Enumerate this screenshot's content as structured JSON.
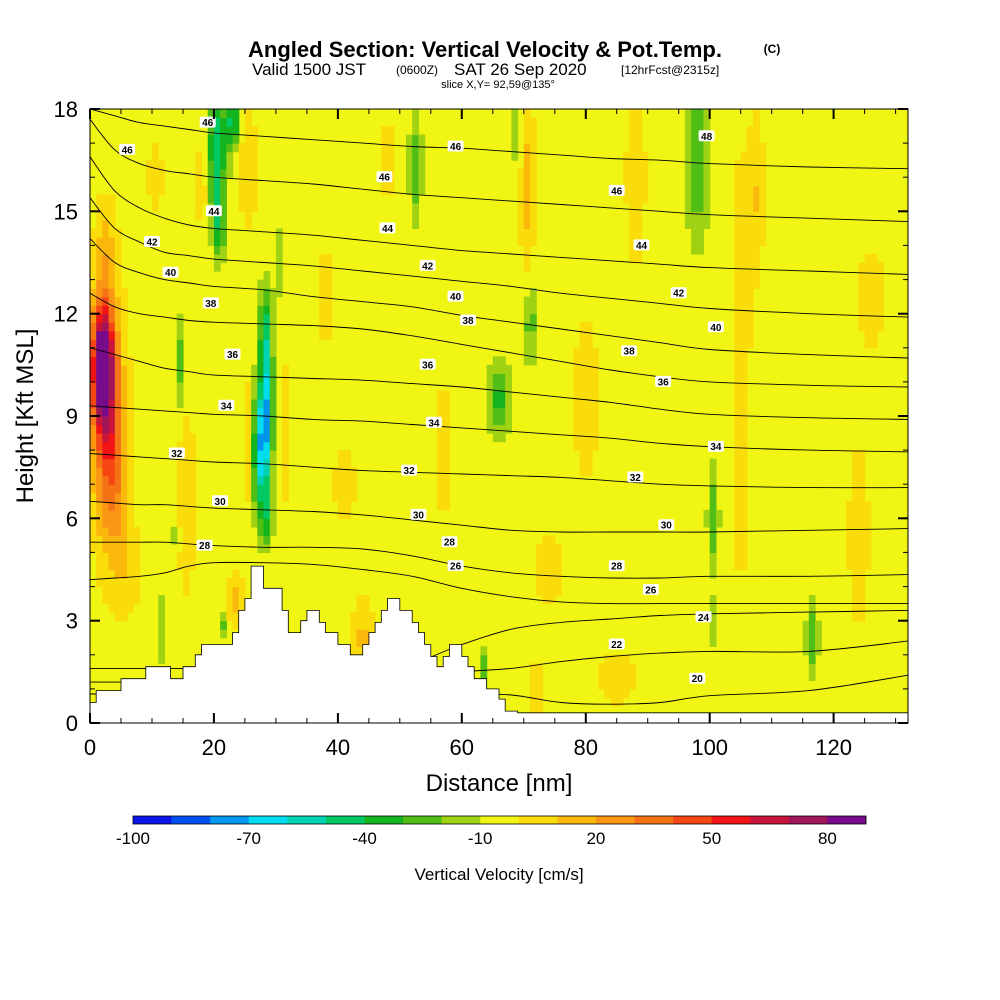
{
  "chart_data": {
    "type": "heatmap",
    "title": "Angled Section: Vertical Velocity & Pot.Temp.",
    "title_units": "(C)",
    "subtitle_parts": [
      "Valid 1500 JST",
      "(0600Z)",
      "SAT 26 Sep 2020",
      "[12hrFcst@2315z]"
    ],
    "slice_label": "slice X,Y= 92,59@135°",
    "xlabel": "Distance [nm]",
    "ylabel": "Height [Kft MSL]",
    "xlim": [
      0,
      132
    ],
    "ylim": [
      0,
      18
    ],
    "x_ticks": [
      0,
      20,
      40,
      60,
      80,
      100,
      120
    ],
    "y_ticks": [
      0,
      3,
      6,
      9,
      12,
      15,
      18
    ],
    "colorbar": {
      "label": "Vertical Velocity [cm/s]",
      "tick_values": [
        -100,
        -70,
        -40,
        -10,
        20,
        50,
        80
      ],
      "tick_labels": [
        "-100",
        "-70",
        "-40",
        "-10",
        "20",
        "50",
        "80"
      ],
      "bins_start": -100,
      "bin_width": 10,
      "colors": [
        "#0a14e6",
        "#0050f0",
        "#0096f0",
        "#00dcf0",
        "#00d2b4",
        "#00c864",
        "#14b41e",
        "#50be14",
        "#a0d214",
        "#f0f514",
        "#fadc0a",
        "#fab90a",
        "#fa9614",
        "#f57314",
        "#f54614",
        "#f01414",
        "#c8143c",
        "#a0145a",
        "#780a8c"
      ]
    },
    "theta_contours": [
      {
        "value": 20,
        "label": "20",
        "z": [
          0.85,
          0.85,
          0.85,
          0.85,
          0.85,
          0.85,
          0.85,
          0.85,
          0.85,
          0.85,
          0.85,
          0.82,
          0.6,
          0.55,
          0.6,
          0.8,
          0.95,
          1.4
        ]
      },
      {
        "value": 22,
        "label": "22",
        "z": [
          1.2,
          1.2,
          1.2,
          1.2,
          1.2,
          1.2,
          1.2,
          1.2,
          1.15,
          1.35,
          1.5,
          1.6,
          1.8,
          1.95,
          2.05,
          2.1,
          2.1,
          2.4
        ]
      },
      {
        "value": 24,
        "label": "24",
        "z": [
          1.6,
          1.6,
          1.6,
          1.6,
          1.6,
          1.6,
          1.6,
          1.6,
          1.6,
          1.75,
          2.3,
          2.75,
          2.95,
          3.05,
          3.15,
          3.2,
          3.25,
          3.3
        ]
      },
      {
        "value": 26,
        "label": "26",
        "z": [
          4.2,
          4.25,
          4.3,
          4.4,
          4.6,
          4.7,
          4.7,
          4.65,
          4.5,
          4.3,
          3.95,
          3.7,
          3.55,
          3.5,
          3.5,
          3.5,
          3.5,
          3.5
        ]
      },
      {
        "value": 28,
        "label": "28",
        "z": [
          5.3,
          5.3,
          5.3,
          5.3,
          5.25,
          5.2,
          5.15,
          5.15,
          5.1,
          4.9,
          4.6,
          4.4,
          4.3,
          4.25,
          4.25,
          4.3,
          4.3,
          4.35
        ]
      },
      {
        "value": 30,
        "label": "30",
        "z": [
          6.5,
          6.45,
          6.4,
          6.4,
          6.35,
          6.3,
          6.25,
          6.2,
          6.1,
          5.95,
          5.8,
          5.65,
          5.6,
          5.6,
          5.6,
          5.6,
          5.65,
          5.7
        ]
      },
      {
        "value": 32,
        "label": "32",
        "z": [
          7.9,
          7.85,
          7.8,
          7.75,
          7.7,
          7.65,
          7.6,
          7.5,
          7.4,
          7.35,
          7.3,
          7.25,
          7.2,
          7.1,
          7.0,
          6.95,
          6.9,
          6.9
        ]
      },
      {
        "value": 34,
        "label": "34",
        "z": [
          9.3,
          9.25,
          9.2,
          9.15,
          9.1,
          9.05,
          9.0,
          8.9,
          8.85,
          8.75,
          8.65,
          8.55,
          8.45,
          8.35,
          8.2,
          8.1,
          8.0,
          7.95
        ]
      },
      {
        "value": 36,
        "label": "36",
        "z": [
          11.0,
          10.8,
          10.6,
          10.4,
          10.3,
          10.2,
          10.15,
          10.1,
          10.05,
          9.95,
          9.85,
          9.7,
          9.55,
          9.4,
          9.2,
          9.05,
          8.95,
          8.9
        ]
      },
      {
        "value": 38,
        "label": "38",
        "z": [
          12.6,
          12.2,
          12.0,
          11.9,
          11.8,
          11.75,
          11.7,
          11.65,
          11.55,
          11.35,
          11.1,
          10.85,
          10.6,
          10.35,
          10.15,
          10.0,
          9.9,
          9.85
        ]
      },
      {
        "value": 40,
        "label": "40",
        "z": [
          14.2,
          13.5,
          13.2,
          13.0,
          12.9,
          12.8,
          12.7,
          12.5,
          12.35,
          12.2,
          11.95,
          11.75,
          11.55,
          11.35,
          11.15,
          10.95,
          10.8,
          10.7
        ]
      },
      {
        "value": 42,
        "label": "42",
        "z": [
          15.4,
          14.5,
          14.1,
          13.8,
          13.7,
          13.6,
          13.5,
          13.4,
          13.25,
          13.1,
          12.95,
          12.8,
          12.6,
          12.45,
          12.3,
          12.15,
          12.0,
          11.9
        ]
      },
      {
        "value": 44,
        "label": "44",
        "z": [
          16.6,
          15.6,
          15.1,
          14.8,
          14.6,
          14.5,
          14.4,
          14.3,
          14.15,
          14.0,
          13.85,
          13.75,
          13.65,
          13.55,
          13.45,
          13.35,
          13.25,
          13.15
        ]
      },
      {
        "value": 46,
        "label": "46",
        "z": [
          17.7,
          16.8,
          16.4,
          16.2,
          16.1,
          16.0,
          15.9,
          15.8,
          15.65,
          15.5,
          15.4,
          15.3,
          15.2,
          15.1,
          15.0,
          14.9,
          14.8,
          14.7
        ]
      },
      {
        "value": 48,
        "label": "48",
        "z": [
          18.0,
          17.8,
          17.6,
          17.5,
          17.4,
          17.3,
          17.2,
          17.1,
          17.0,
          16.9,
          16.85,
          16.75,
          16.65,
          16.55,
          16.5,
          16.4,
          16.3,
          16.25
        ]
      }
    ],
    "contour_x": [
      0,
      4,
      8,
      12,
      16,
      20,
      28,
      36,
      44,
      52,
      60,
      68,
      76,
      84,
      92,
      100,
      116,
      132
    ],
    "contour_label_positions": [
      {
        "label": "46",
        "x": 6,
        "z": 16.8
      },
      {
        "label": "46",
        "x": 19,
        "z": 17.6
      },
      {
        "label": "46",
        "x": 59,
        "z": 16.9
      },
      {
        "label": "46",
        "x": 47.5,
        "z": 16.0
      },
      {
        "label": "46",
        "x": 85,
        "z": 15.6
      },
      {
        "label": "48",
        "x": 99.5,
        "z": 17.2
      },
      {
        "label": "44",
        "x": 20,
        "z": 15.0
      },
      {
        "label": "44",
        "x": 48,
        "z": 14.5
      },
      {
        "label": "44",
        "x": 89,
        "z": 14.0
      },
      {
        "label": "42",
        "x": 10,
        "z": 14.1
      },
      {
        "label": "42",
        "x": 54.5,
        "z": 13.4
      },
      {
        "label": "42",
        "x": 95,
        "z": 12.6
      },
      {
        "label": "40",
        "x": 13,
        "z": 13.2
      },
      {
        "label": "40",
        "x": 59,
        "z": 12.5
      },
      {
        "label": "40",
        "x": 101,
        "z": 11.6
      },
      {
        "label": "38",
        "x": 19.5,
        "z": 12.3
      },
      {
        "label": "38",
        "x": 61,
        "z": 11.8
      },
      {
        "label": "38",
        "x": 87,
        "z": 10.9
      },
      {
        "label": "36",
        "x": 23,
        "z": 10.8
      },
      {
        "label": "36",
        "x": 54.5,
        "z": 10.5
      },
      {
        "label": "36",
        "x": 92.5,
        "z": 10.0
      },
      {
        "label": "34",
        "x": 22,
        "z": 9.3
      },
      {
        "label": "34",
        "x": 55.5,
        "z": 8.8
      },
      {
        "label": "34",
        "x": 101,
        "z": 8.1
      },
      {
        "label": "32",
        "x": 14,
        "z": 7.9
      },
      {
        "label": "32",
        "x": 51.5,
        "z": 7.4
      },
      {
        "label": "32",
        "x": 88,
        "z": 7.2
      },
      {
        "label": "30",
        "x": 21,
        "z": 6.5
      },
      {
        "label": "30",
        "x": 53,
        "z": 6.1
      },
      {
        "label": "30",
        "x": 93,
        "z": 5.8
      },
      {
        "label": "28",
        "x": 18.5,
        "z": 5.2
      },
      {
        "label": "28",
        "x": 58,
        "z": 5.3
      },
      {
        "label": "28",
        "x": 85,
        "z": 4.6
      },
      {
        "label": "26",
        "x": 59,
        "z": 4.6
      },
      {
        "label": "26",
        "x": 90.5,
        "z": 3.9
      },
      {
        "label": "24",
        "x": 99,
        "z": 3.1
      },
      {
        "label": "22",
        "x": 85,
        "z": 2.3
      },
      {
        "label": "20",
        "x": 98,
        "z": 1.3
      }
    ],
    "terrain": {
      "x": [
        0,
        1,
        1,
        5,
        5,
        9,
        9,
        13,
        13,
        15,
        15,
        17,
        17,
        18,
        18,
        20,
        20,
        23,
        23,
        24,
        24,
        25,
        25,
        26,
        26,
        28,
        28,
        31,
        31,
        32,
        32,
        34,
        34,
        35,
        35,
        37,
        37,
        38,
        38,
        40,
        40,
        42,
        42,
        43,
        43,
        44,
        44,
        45,
        45,
        46,
        46,
        47,
        47,
        48,
        48,
        50,
        50,
        52,
        52,
        53,
        53,
        54,
        54,
        55,
        55,
        56,
        56,
        57,
        57,
        58,
        58,
        60,
        60,
        61,
        61,
        62,
        62,
        63,
        63,
        64,
        64,
        66,
        66,
        67,
        67,
        69,
        69,
        71,
        71,
        132
      ],
      "z": [
        0.6,
        0.6,
        0.95,
        0.95,
        1.3,
        1.3,
        1.65,
        1.65,
        1.3,
        1.3,
        1.65,
        1.65,
        2.0,
        2.0,
        2.3,
        2.3,
        2.3,
        2.3,
        2.65,
        2.65,
        3.3,
        3.3,
        3.65,
        3.65,
        4.6,
        4.6,
        3.95,
        3.95,
        3.3,
        3.3,
        2.65,
        2.65,
        3.0,
        3.0,
        3.3,
        3.3,
        2.95,
        2.95,
        2.65,
        2.65,
        2.3,
        2.3,
        2.0,
        2.0,
        2.0,
        2.0,
        2.3,
        2.3,
        2.65,
        2.65,
        2.95,
        2.95,
        3.3,
        3.3,
        3.65,
        3.65,
        3.3,
        3.3,
        2.95,
        2.95,
        2.65,
        2.65,
        2.3,
        2.3,
        1.95,
        1.95,
        1.65,
        1.65,
        1.95,
        1.95,
        2.3,
        2.3,
        1.95,
        1.95,
        1.65,
        1.65,
        1.3,
        1.3,
        1.3,
        1.3,
        1.0,
        1.0,
        0.7,
        0.7,
        0.35,
        0.35,
        0.3,
        0.3,
        0.3,
        0.3
      ]
    },
    "w_background": -5,
    "w_features": [
      {
        "x": 2,
        "z": 10.5,
        "sx": 1.6,
        "sz": 1.6,
        "w": 85
      },
      {
        "x": 2.5,
        "z": 9.5,
        "sx": 2.5,
        "sz": 3.4,
        "w": 45
      },
      {
        "x": 4,
        "z": 7.5,
        "sx": 2.2,
        "sz": 2.8,
        "w": 25
      },
      {
        "x": 2.5,
        "z": 14.0,
        "sx": 1.6,
        "sz": 1.3,
        "w": 15
      },
      {
        "x": 6,
        "z": 4.5,
        "sx": 2.5,
        "sz": 1.5,
        "w": 10
      },
      {
        "x": 20.5,
        "z": 16.8,
        "sx": 1.4,
        "sz": 1.8,
        "w": -45
      },
      {
        "x": 20.8,
        "z": 14.6,
        "sx": 0.9,
        "sz": 0.9,
        "w": -30
      },
      {
        "x": 23,
        "z": 17.6,
        "sx": 1.0,
        "sz": 0.7,
        "w": -40
      },
      {
        "x": 25.5,
        "z": 16.3,
        "sx": 1.3,
        "sz": 1.7,
        "w": 15
      },
      {
        "x": 18,
        "z": 15.8,
        "sx": 1.0,
        "sz": 1.3,
        "w": 12
      },
      {
        "x": 27.5,
        "z": 8.0,
        "sx": 1.3,
        "sz": 1.8,
        "w": -55
      },
      {
        "x": 28.5,
        "z": 9.2,
        "sx": 1.0,
        "sz": 1.8,
        "w": -45
      },
      {
        "x": 28.3,
        "z": 11.4,
        "sx": 1.0,
        "sz": 1.4,
        "w": -35
      },
      {
        "x": 28.5,
        "z": 6.1,
        "sx": 0.9,
        "sz": 0.8,
        "w": -28
      },
      {
        "x": 30.5,
        "z": 13.5,
        "sx": 0.7,
        "sz": 1.0,
        "w": -15
      },
      {
        "x": 25.5,
        "z": 8.2,
        "sx": 0.8,
        "sz": 2.0,
        "w": 15
      },
      {
        "x": 31.5,
        "z": 8.5,
        "sx": 1.0,
        "sz": 2.2,
        "w": 12
      },
      {
        "x": 14.5,
        "z": 10.5,
        "sx": 0.7,
        "sz": 1.3,
        "w": -20
      },
      {
        "x": 13.8,
        "z": 5.5,
        "sx": 0.6,
        "sz": 0.4,
        "w": -20
      },
      {
        "x": 11.5,
        "z": 2.8,
        "sx": 0.7,
        "sz": 1.0,
        "w": -15
      },
      {
        "x": 21.5,
        "z": 2.9,
        "sx": 0.6,
        "sz": 0.4,
        "w": -20
      },
      {
        "x": 23.5,
        "z": 3.6,
        "sx": 1.2,
        "sz": 0.8,
        "w": 20
      },
      {
        "x": 15.5,
        "z": 6.5,
        "sx": 1.5,
        "sz": 3.0,
        "w": 12
      },
      {
        "x": 52.5,
        "z": 16.3,
        "sx": 0.9,
        "sz": 1.4,
        "w": -25
      },
      {
        "x": 66,
        "z": 9.5,
        "sx": 1.6,
        "sz": 1.0,
        "w": -30
      },
      {
        "x": 71,
        "z": 11.7,
        "sx": 0.8,
        "sz": 1.0,
        "w": -25
      },
      {
        "x": 70.5,
        "z": 15.8,
        "sx": 1.1,
        "sz": 2.5,
        "w": 20
      },
      {
        "x": 69,
        "z": 17.3,
        "sx": 0.7,
        "sz": 1.0,
        "w": -15
      },
      {
        "x": 98,
        "z": 16.5,
        "sx": 1.6,
        "sz": 2.3,
        "w": -25
      },
      {
        "x": 100.5,
        "z": 6.0,
        "sx": 0.8,
        "sz": 1.3,
        "w": -25
      },
      {
        "x": 100.5,
        "z": 3.0,
        "sx": 0.6,
        "sz": 0.7,
        "w": -15
      },
      {
        "x": 116.5,
        "z": 2.5,
        "sx": 0.9,
        "sz": 0.9,
        "w": -25
      },
      {
        "x": 63.5,
        "z": 1.5,
        "sx": 0.4,
        "sz": 0.6,
        "w": -25
      },
      {
        "x": 105,
        "z": 10.5,
        "sx": 1.4,
        "sz": 6.0,
        "w": 15
      },
      {
        "x": 107.5,
        "z": 15.5,
        "sx": 1.2,
        "sz": 2.5,
        "w": 15
      },
      {
        "x": 88,
        "z": 16.0,
        "sx": 1.5,
        "sz": 2.5,
        "w": 15
      },
      {
        "x": 80,
        "z": 9.5,
        "sx": 2.0,
        "sz": 2.5,
        "w": 12
      },
      {
        "x": 44,
        "z": 2.6,
        "sx": 1.5,
        "sz": 1.0,
        "w": 18
      },
      {
        "x": 41,
        "z": 7.0,
        "sx": 1.8,
        "sz": 1.2,
        "w": 12
      },
      {
        "x": 48,
        "z": 16.5,
        "sx": 1.2,
        "sz": 1.3,
        "w": 12
      },
      {
        "x": 38,
        "z": 12.5,
        "sx": 1.2,
        "sz": 1.5,
        "w": 12
      },
      {
        "x": 10.5,
        "z": 16.0,
        "sx": 1.2,
        "sz": 1.2,
        "w": 12
      },
      {
        "x": 57,
        "z": 8.0,
        "sx": 1.5,
        "sz": 2.0,
        "w": 12
      },
      {
        "x": 74,
        "z": 4.5,
        "sx": 2.5,
        "sz": 1.0,
        "w": 12
      },
      {
        "x": 72,
        "z": 1.0,
        "sx": 1.2,
        "sz": 0.7,
        "w": 18
      },
      {
        "x": 85,
        "z": 1.3,
        "sx": 3.0,
        "sz": 0.8,
        "w": 12
      },
      {
        "x": 126,
        "z": 12.5,
        "sx": 2.5,
        "sz": 1.5,
        "w": 12
      },
      {
        "x": 124,
        "z": 5.5,
        "sx": 2.0,
        "sz": 3.0,
        "w": 10
      }
    ]
  }
}
